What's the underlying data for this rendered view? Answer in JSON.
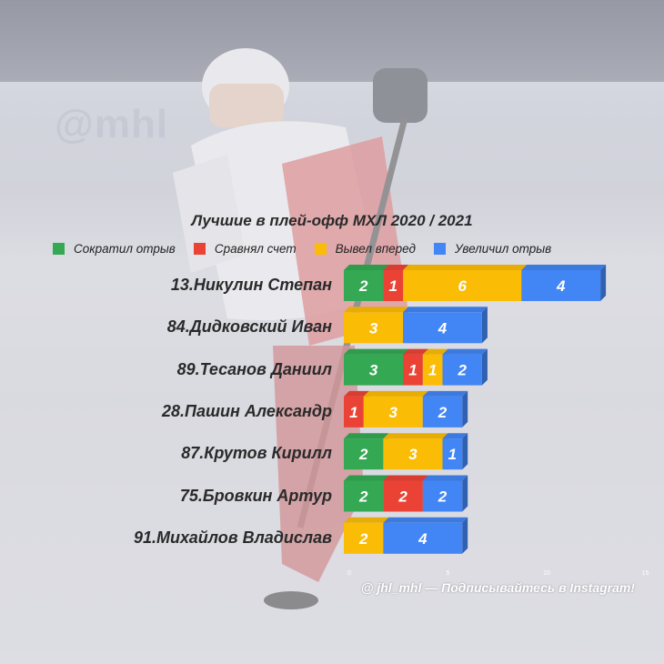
{
  "title": "Лучшие в плей-офф МХЛ 2020 / 2021",
  "footer": "@ jhl_mhl — Подписывайтесь в Instagram!",
  "legend": [
    {
      "label": "Сократил отрыв",
      "color": "#34a853"
    },
    {
      "label": "Сравнял счет",
      "color": "#ea4335"
    },
    {
      "label": "Вывел вперед",
      "color": "#fbbc05"
    },
    {
      "label": "Увеличил отрыв",
      "color": "#4285f4"
    }
  ],
  "chart_data": {
    "type": "bar",
    "orientation": "horizontal",
    "stacked": true,
    "title": "Лучшие в плей-офф МХЛ 2020 / 2021",
    "categories": [
      "13.Никулин Степан",
      "84.Дидковский Иван",
      "89.Тесанов Даниил",
      "28.Пашин Александр",
      "87.Крутов Кирилл",
      "75.Бровкин Артур",
      "91.Михайлов Владислав"
    ],
    "series": [
      {
        "name": "Сократил отрыв",
        "color": "#34a853",
        "values": [
          2,
          0,
          3,
          0,
          2,
          2,
          0
        ]
      },
      {
        "name": "Сравнял счет",
        "color": "#ea4335",
        "values": [
          1,
          0,
          1,
          1,
          0,
          2,
          0
        ]
      },
      {
        "name": "Вывел вперед",
        "color": "#fbbc05",
        "values": [
          6,
          3,
          1,
          3,
          3,
          0,
          2
        ]
      },
      {
        "name": "Увеличил отрыв",
        "color": "#4285f4",
        "values": [
          4,
          4,
          2,
          2,
          1,
          2,
          4
        ]
      }
    ],
    "xlim": [
      0,
      15
    ],
    "xticks": [
      0,
      5,
      10,
      15
    ],
    "legend_position": "top"
  }
}
